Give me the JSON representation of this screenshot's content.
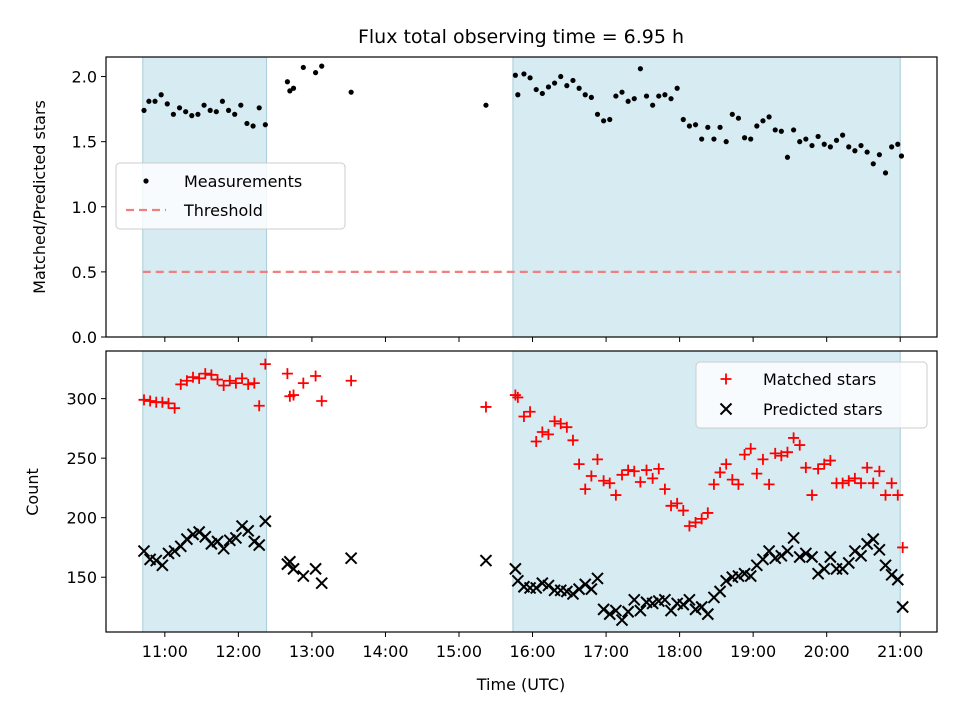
{
  "figure_title": "Flux total observing time = 6.95 h",
  "chart_data": [
    {
      "type": "scatter",
      "title": "Flux total observing time = 6.95 h",
      "ylabel": "Matched/Predicted stars",
      "ylim": [
        0,
        2.15
      ],
      "yticks": [
        0.0,
        0.5,
        1.0,
        1.5,
        2.0
      ],
      "ytick_labels": [
        "0.0",
        "0.5",
        "1.0",
        "1.5",
        "2.0"
      ],
      "grid": false,
      "legend_position": "center-left",
      "shaded_intervals": [
        [
          "10:42",
          "12:23"
        ],
        [
          "15:44",
          "21:00"
        ]
      ],
      "threshold": {
        "name": "Threshold",
        "value": 0.5,
        "x_range": [
          "10:42",
          "21:00"
        ],
        "color": "#f08080"
      },
      "series": [
        {
          "name": "Measurements",
          "marker": "dot",
          "color": "#000000",
          "x": [
            "10:43",
            "10:47",
            "10:52",
            "10:57",
            "11:02",
            "11:07",
            "11:12",
            "11:17",
            "11:22",
            "11:27",
            "11:32",
            "11:37",
            "11:42",
            "11:47",
            "11:52",
            "11:57",
            "12:02",
            "12:07",
            "12:12",
            "12:17",
            "12:22",
            "12:40",
            "12:42",
            "12:45",
            "12:53",
            "13:03",
            "13:08",
            "13:32",
            "15:22",
            "15:46",
            "15:48",
            "15:53",
            "15:58",
            "16:03",
            "16:08",
            "16:13",
            "16:18",
            "16:23",
            "16:28",
            "16:33",
            "16:38",
            "16:43",
            "16:48",
            "16:53",
            "16:58",
            "17:03",
            "17:08",
            "17:13",
            "17:18",
            "17:23",
            "17:28",
            "17:33",
            "17:38",
            "17:43",
            "17:48",
            "17:53",
            "17:58",
            "18:03",
            "18:08",
            "18:13",
            "18:18",
            "18:23",
            "18:28",
            "18:33",
            "18:38",
            "18:43",
            "18:48",
            "18:53",
            "18:58",
            "19:03",
            "19:08",
            "19:13",
            "19:18",
            "19:23",
            "19:28",
            "19:33",
            "19:38",
            "19:43",
            "19:48",
            "19:53",
            "19:58",
            "20:03",
            "20:08",
            "20:13",
            "20:18",
            "20:23",
            "20:28",
            "20:33",
            "20:38",
            "20:43",
            "20:48",
            "20:53",
            "20:58",
            "21:01"
          ],
          "y": [
            1.74,
            1.81,
            1.81,
            1.86,
            1.79,
            1.71,
            1.76,
            1.73,
            1.7,
            1.71,
            1.78,
            1.74,
            1.73,
            1.81,
            1.74,
            1.71,
            1.78,
            1.64,
            1.62,
            1.76,
            1.63,
            1.96,
            1.89,
            1.91,
            2.07,
            2.03,
            2.08,
            1.88,
            1.78,
            2.01,
            1.86,
            2.02,
            1.99,
            1.9,
            1.87,
            1.92,
            1.95,
            2.0,
            1.93,
            1.97,
            1.91,
            1.86,
            1.84,
            1.71,
            1.66,
            1.67,
            1.85,
            1.88,
            1.81,
            1.83,
            2.06,
            1.85,
            1.78,
            1.85,
            1.86,
            1.83,
            1.91,
            1.67,
            1.62,
            1.63,
            1.52,
            1.61,
            1.52,
            1.61,
            1.5,
            1.71,
            1.68,
            1.53,
            1.52,
            1.62,
            1.66,
            1.69,
            1.59,
            1.58,
            1.38,
            1.59,
            1.5,
            1.52,
            1.47,
            1.54,
            1.48,
            1.46,
            1.51,
            1.55,
            1.46,
            1.43,
            1.47,
            1.42,
            1.33,
            1.4,
            1.26,
            1.46,
            1.48,
            1.39
          ]
        }
      ]
    },
    {
      "type": "scatter",
      "xlabel": "Time (UTC)",
      "ylabel": "Count",
      "ylim": [
        104,
        340
      ],
      "yticks": [
        150,
        200,
        250,
        300
      ],
      "ytick_labels": [
        "150",
        "200",
        "250",
        "300"
      ],
      "xlim": [
        "10:12",
        "21:30"
      ],
      "xticks": [
        "11:00",
        "12:00",
        "13:00",
        "14:00",
        "15:00",
        "16:00",
        "17:00",
        "18:00",
        "19:00",
        "20:00",
        "21:00"
      ],
      "grid": false,
      "legend_position": "top-right",
      "shaded_intervals": [
        [
          "10:42",
          "12:23"
        ],
        [
          "15:44",
          "21:00"
        ]
      ],
      "series": [
        {
          "name": "Matched stars",
          "marker": "plus",
          "color": "#ff0000",
          "x": [
            "10:43",
            "10:48",
            "10:53",
            "10:58",
            "11:03",
            "11:08",
            "11:13",
            "11:18",
            "11:23",
            "11:28",
            "11:33",
            "11:38",
            "11:43",
            "11:48",
            "11:53",
            "11:58",
            "12:03",
            "12:08",
            "12:13",
            "12:17",
            "12:22",
            "12:40",
            "12:42",
            "12:45",
            "12:53",
            "13:03",
            "13:08",
            "13:32",
            "15:22",
            "15:46",
            "15:48",
            "15:53",
            "15:58",
            "16:03",
            "16:08",
            "16:13",
            "16:18",
            "16:23",
            "16:28",
            "16:33",
            "16:38",
            "16:43",
            "16:48",
            "16:53",
            "16:58",
            "17:03",
            "17:08",
            "17:13",
            "17:18",
            "17:23",
            "17:28",
            "17:33",
            "17:38",
            "17:43",
            "17:48",
            "17:53",
            "17:58",
            "18:03",
            "18:08",
            "18:13",
            "18:18",
            "18:23",
            "18:28",
            "18:33",
            "18:38",
            "18:43",
            "18:48",
            "18:53",
            "18:58",
            "19:03",
            "19:08",
            "19:13",
            "19:18",
            "19:23",
            "19:28",
            "19:33",
            "19:38",
            "19:43",
            "19:48",
            "19:53",
            "19:58",
            "20:03",
            "20:08",
            "20:13",
            "20:18",
            "20:23",
            "20:28",
            "20:33",
            "20:38",
            "20:43",
            "20:48",
            "20:53",
            "20:58",
            "21:02"
          ],
          "y": [
            299,
            298,
            297,
            297,
            296,
            292,
            312,
            315,
            318,
            317,
            321,
            320,
            316,
            311,
            315,
            313,
            317,
            312,
            313,
            294,
            329,
            321,
            302,
            303,
            313,
            319,
            298,
            315,
            293,
            303,
            301,
            285,
            289,
            264,
            272,
            270,
            281,
            279,
            276,
            265,
            245,
            224,
            235,
            249,
            231,
            229,
            219,
            236,
            240,
            239,
            230,
            240,
            233,
            241,
            224,
            210,
            212,
            206,
            193,
            196,
            199,
            204,
            228,
            238,
            245,
            232,
            228,
            253,
            258,
            237,
            249,
            228,
            254,
            252,
            255,
            267,
            261,
            242,
            219,
            241,
            245,
            248,
            229,
            229,
            231,
            233,
            229,
            242,
            229,
            239,
            219,
            229,
            219,
            175
          ]
        },
        {
          "name": "Predicted stars",
          "marker": "x",
          "color": "#000000",
          "x": [
            "10:43",
            "10:48",
            "10:53",
            "10:58",
            "11:03",
            "11:08",
            "11:13",
            "11:18",
            "11:23",
            "11:28",
            "11:33",
            "11:38",
            "11:43",
            "11:48",
            "11:53",
            "11:58",
            "12:03",
            "12:08",
            "12:13",
            "12:17",
            "12:22",
            "12:40",
            "12:42",
            "12:45",
            "12:53",
            "13:03",
            "13:08",
            "13:32",
            "15:22",
            "15:46",
            "15:48",
            "15:53",
            "15:58",
            "16:03",
            "16:08",
            "16:13",
            "16:18",
            "16:23",
            "16:28",
            "16:33",
            "16:38",
            "16:43",
            "16:48",
            "16:53",
            "16:58",
            "17:03",
            "17:08",
            "17:13",
            "17:18",
            "17:23",
            "17:28",
            "17:33",
            "17:38",
            "17:43",
            "17:48",
            "17:53",
            "17:58",
            "18:03",
            "18:08",
            "18:13",
            "18:18",
            "18:23",
            "18:28",
            "18:33",
            "18:38",
            "18:43",
            "18:48",
            "18:53",
            "18:58",
            "19:03",
            "19:08",
            "19:13",
            "19:18",
            "19:23",
            "19:28",
            "19:33",
            "19:38",
            "19:43",
            "19:48",
            "19:53",
            "19:58",
            "20:03",
            "20:08",
            "20:13",
            "20:18",
            "20:23",
            "20:28",
            "20:33",
            "20:38",
            "20:43",
            "20:48",
            "20:53",
            "20:58",
            "21:02"
          ],
          "y": [
            172,
            165,
            164,
            160,
            170,
            172,
            176,
            182,
            186,
            188,
            184,
            178,
            180,
            174,
            181,
            183,
            193,
            189,
            180,
            177,
            197,
            161,
            163,
            157,
            151,
            157,
            145,
            166,
            164,
            157,
            147,
            142,
            141,
            141,
            145,
            143,
            139,
            139,
            138,
            136,
            140,
            144,
            140,
            149,
            123,
            119,
            122,
            114,
            121,
            131,
            122,
            129,
            128,
            130,
            131,
            122,
            128,
            127,
            131,
            123,
            125,
            119,
            133,
            138,
            147,
            150,
            151,
            153,
            151,
            160,
            165,
            172,
            166,
            168,
            172,
            183,
            167,
            170,
            167,
            153,
            157,
            167,
            157,
            157,
            162,
            172,
            168,
            178,
            182,
            173,
            160,
            152,
            148,
            125
          ]
        }
      ]
    }
  ]
}
